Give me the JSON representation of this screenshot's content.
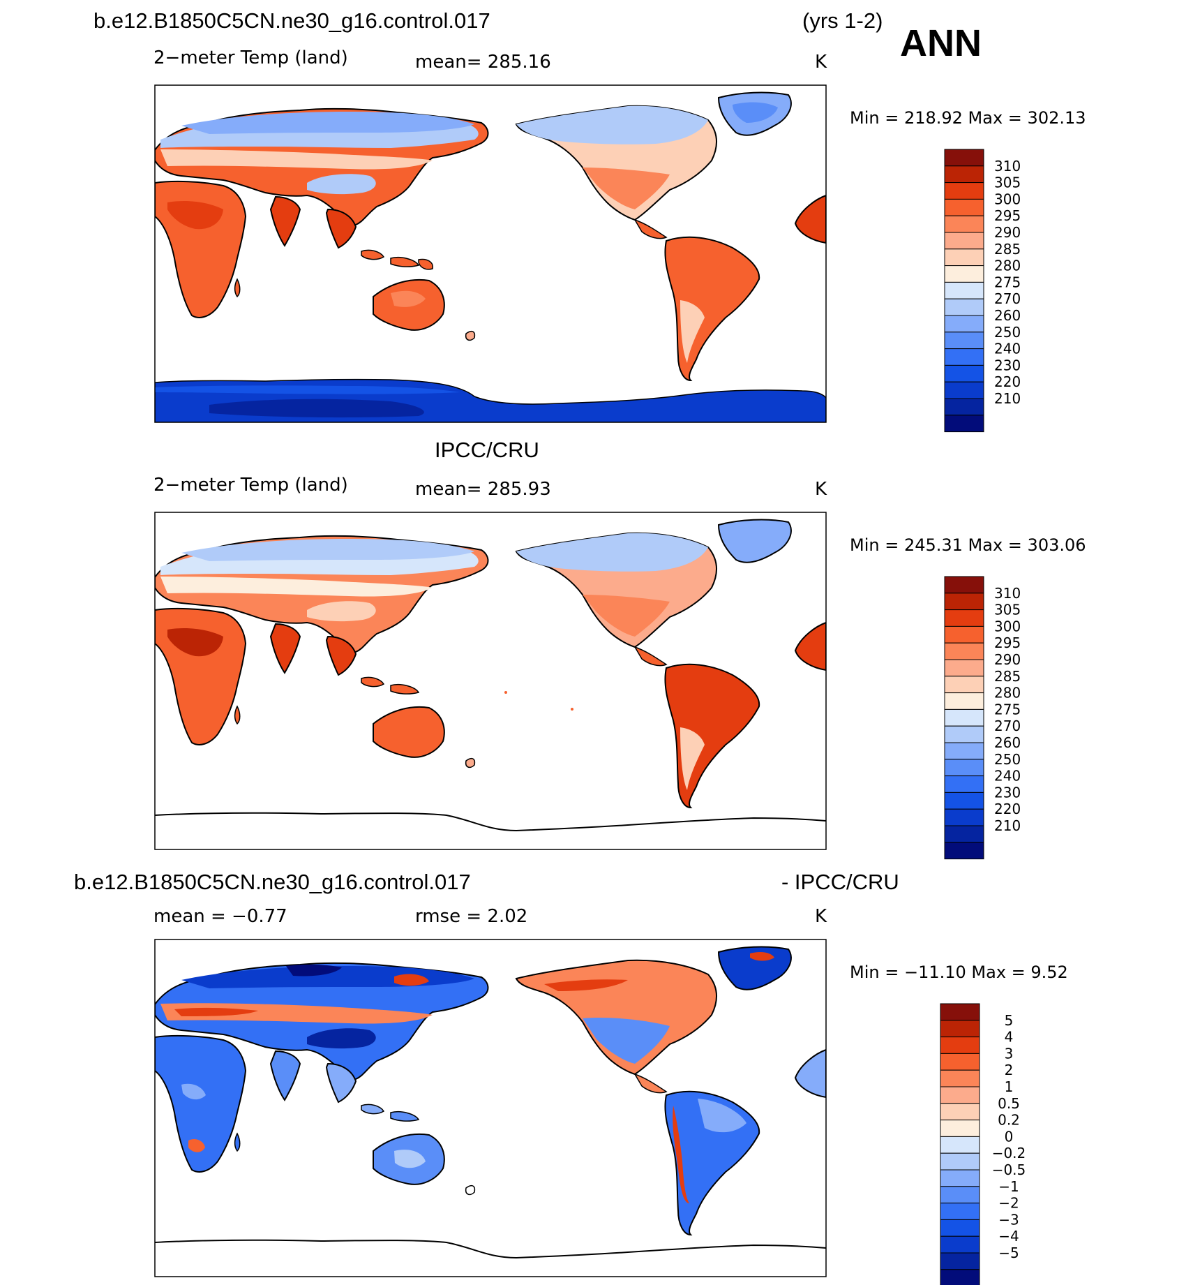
{
  "header": {
    "case_name": "b.e12.B1850C5CN.ne30_g16.control.017",
    "years": "(yrs 1-2)",
    "season": "ANN"
  },
  "colors": {
    "abs_scale": [
      "#020c7a",
      "#0524a0",
      "#0a3ccc",
      "#1453e6",
      "#3370f5",
      "#5a8ef8",
      "#85acfa",
      "#b0cbf9",
      "#d6e6fb",
      "#fdeedd",
      "#fdd0b6",
      "#fcab8c",
      "#fb8558",
      "#f6612e",
      "#e43d10",
      "#bb2405",
      "#86100a"
    ],
    "diff_scale": [
      "#020c7a",
      "#0524a0",
      "#0a3ccc",
      "#1453e6",
      "#3370f5",
      "#5a8ef8",
      "#85acfa",
      "#b0cbf9",
      "#d6e6fb",
      "#fdeedd",
      "#fdd0b6",
      "#fcab8c",
      "#fb8558",
      "#f6612e",
      "#e43d10",
      "#bb2405",
      "#86100a"
    ]
  },
  "chart_data": [
    {
      "type": "heatmap",
      "panel": "model",
      "title": "b.e12.B1850C5CN.ne30_g16.control.017",
      "left_label": "2−meter Temp (land)",
      "center_label": "mean=  285.16",
      "units": "K",
      "min_max": "Min  =  218.92  Max  =  302.13",
      "min": 218.92,
      "max": 302.13,
      "mean": 285.16,
      "colorbar_levels": [
        "310",
        "305",
        "300",
        "295",
        "290",
        "285",
        "280",
        "275",
        "270",
        "260",
        "250",
        "240",
        "230",
        "220",
        "210"
      ]
    },
    {
      "type": "heatmap",
      "panel": "observation",
      "title": "IPCC/CRU",
      "left_label": "2−meter Temp (land)",
      "center_label": "mean=  285.93",
      "units": "K",
      "min_max": "Min  =  245.31  Max  =  303.06",
      "min": 245.31,
      "max": 303.06,
      "mean": 285.93,
      "colorbar_levels": [
        "310",
        "305",
        "300",
        "295",
        "290",
        "285",
        "280",
        "275",
        "270",
        "260",
        "250",
        "240",
        "230",
        "220",
        "210"
      ]
    },
    {
      "type": "heatmap",
      "panel": "difference",
      "title_left": "b.e12.B1850C5CN.ne30_g16.control.017",
      "title_right": "- IPCC/CRU",
      "mean_label": "mean  =     −0.77",
      "rmse_label": "rmse  =      2.02",
      "units": "K",
      "min_max": "Min  =  −11.10  Max  =      9.52",
      "mean": -0.77,
      "rmse": 2.02,
      "min": -11.1,
      "max": 9.52,
      "colorbar_levels": [
        "5",
        "4",
        "3",
        "2",
        "1",
        "0.5",
        "0.2",
        "0",
        "−0.2",
        "−0.5",
        "−1",
        "−2",
        "−3",
        "−4",
        "−5"
      ]
    }
  ]
}
